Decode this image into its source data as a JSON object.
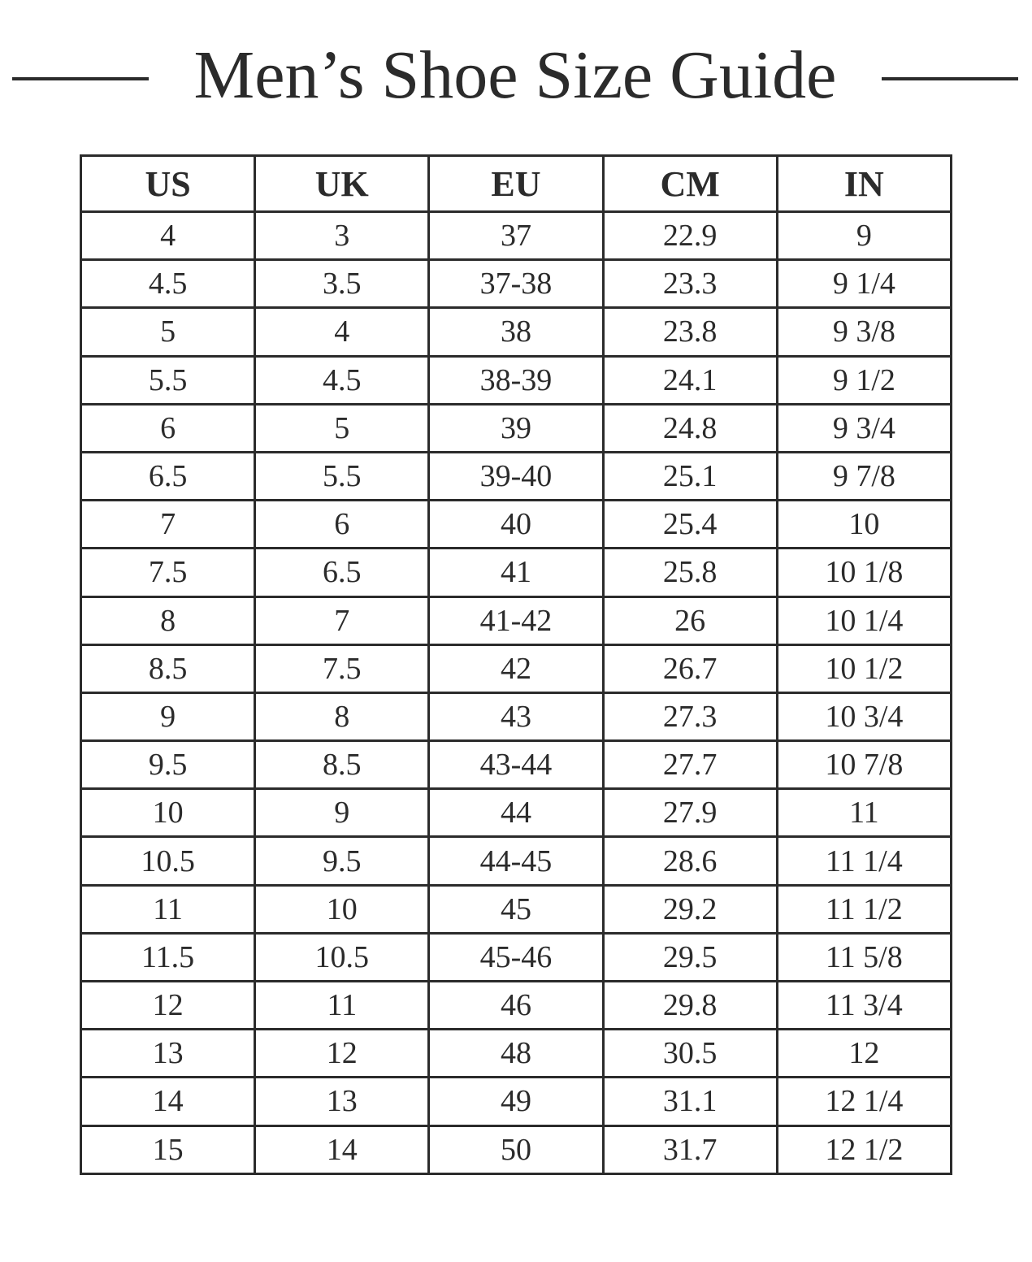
{
  "title": "Men’s Shoe Size Guide",
  "columns": [
    "US",
    "UK",
    "EU",
    "CM",
    "IN"
  ],
  "rows": [
    [
      "4",
      "3",
      "37",
      "22.9",
      "9"
    ],
    [
      "4.5",
      "3.5",
      "37-38",
      "23.3",
      "9 1/4"
    ],
    [
      "5",
      "4",
      "38",
      "23.8",
      "9 3/8"
    ],
    [
      "5.5",
      "4.5",
      "38-39",
      "24.1",
      "9 1/2"
    ],
    [
      "6",
      "5",
      "39",
      "24.8",
      "9 3/4"
    ],
    [
      "6.5",
      "5.5",
      "39-40",
      "25.1",
      "9 7/8"
    ],
    [
      "7",
      "6",
      "40",
      "25.4",
      "10"
    ],
    [
      "7.5",
      "6.5",
      "41",
      "25.8",
      "10 1/8"
    ],
    [
      "8",
      "7",
      "41-42",
      "26",
      "10 1/4"
    ],
    [
      "8.5",
      "7.5",
      "42",
      "26.7",
      "10 1/2"
    ],
    [
      "9",
      "8",
      "43",
      "27.3",
      "10 3/4"
    ],
    [
      "9.5",
      "8.5",
      "43-44",
      "27.7",
      "10 7/8"
    ],
    [
      "10",
      "9",
      "44",
      "27.9",
      "11"
    ],
    [
      "10.5",
      "9.5",
      "44-45",
      "28.6",
      "11 1/4"
    ],
    [
      "11",
      "10",
      "45",
      "29.2",
      "11 1/2"
    ],
    [
      "11.5",
      "10.5",
      "45-46",
      "29.5",
      "11 5/8"
    ],
    [
      "12",
      "11",
      "46",
      "29.8",
      "11 3/4"
    ],
    [
      "13",
      "12",
      "48",
      "30.5",
      "12"
    ],
    [
      "14",
      "13",
      "49",
      "31.1",
      "12 1/4"
    ],
    [
      "15",
      "14",
      "50",
      "31.7",
      "12 1/2"
    ]
  ],
  "colors": {
    "text": "#2b2b2b",
    "border": "#2b2b2b",
    "background": "#ffffff"
  }
}
